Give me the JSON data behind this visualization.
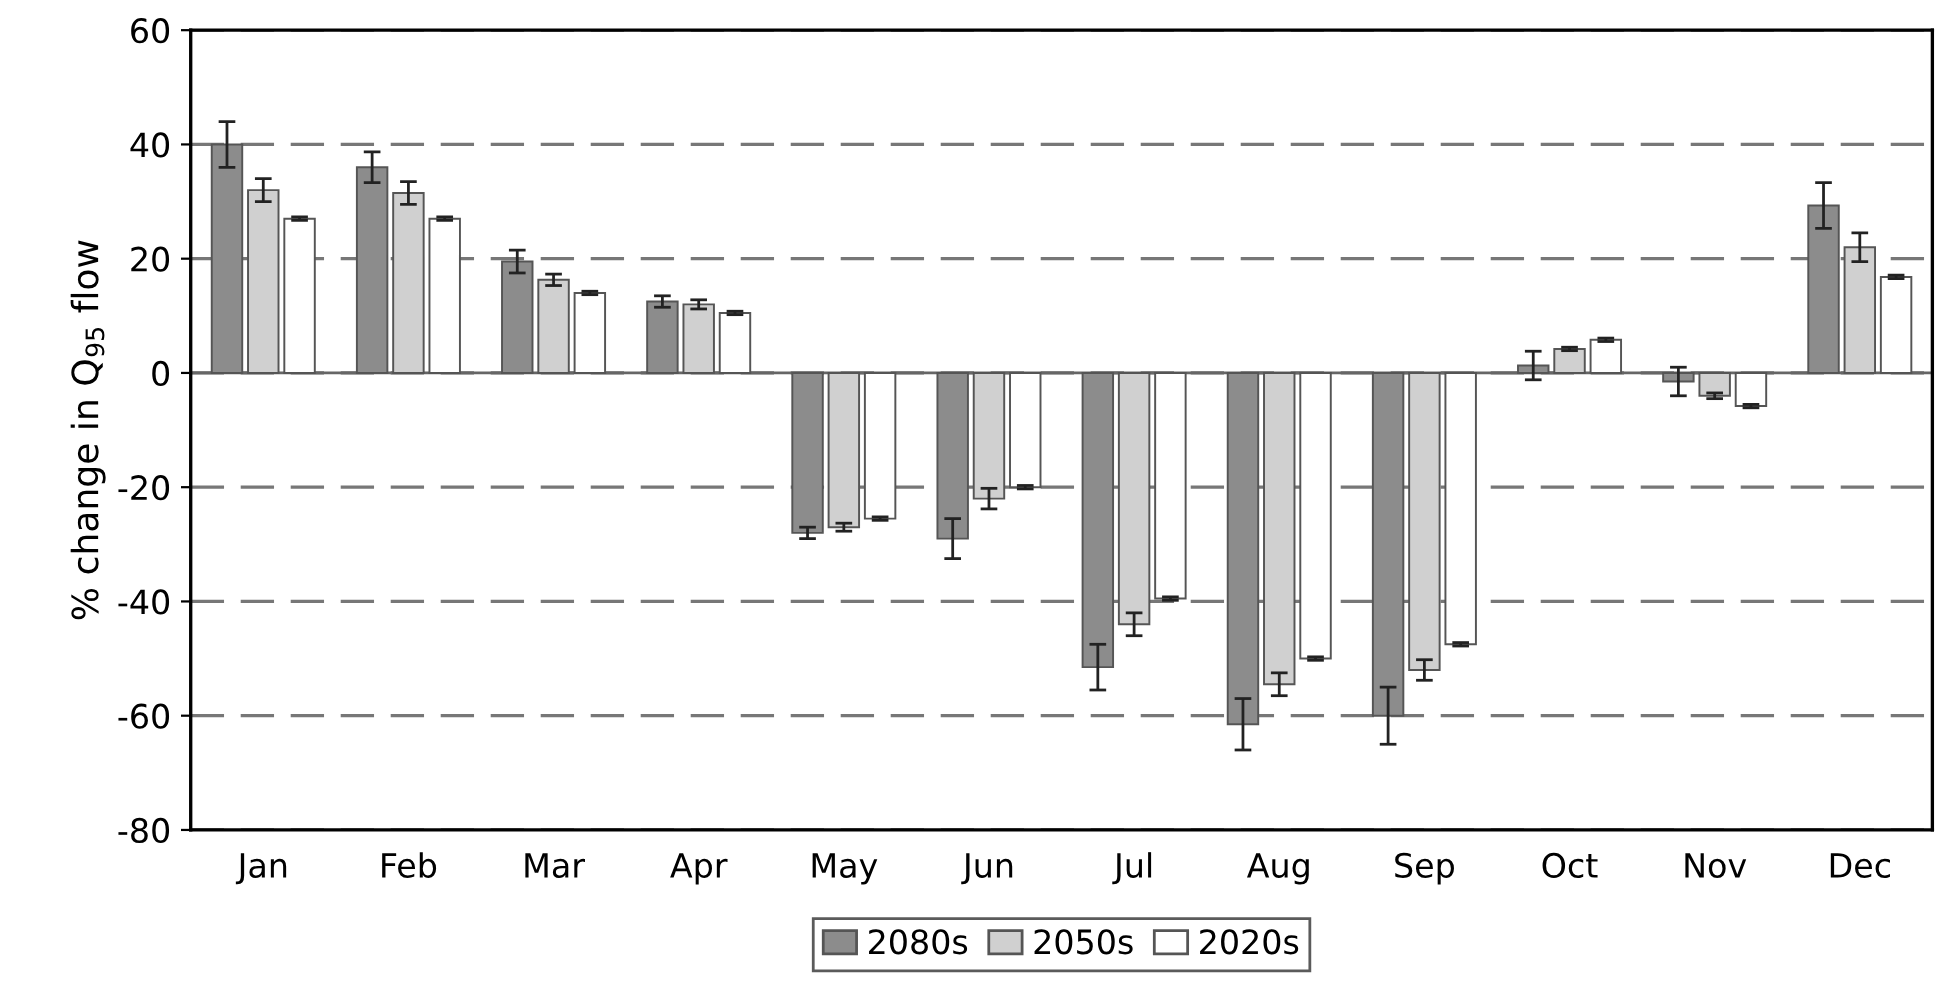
{
  "chart_data": {
    "type": "bar",
    "ylabel": "% change in Q$_{95}$ flow",
    "categories": [
      "Jan",
      "Feb",
      "Mar",
      "Apr",
      "May",
      "Jun",
      "Jul",
      "Aug",
      "Sep",
      "Oct",
      "Nov",
      "Dec"
    ],
    "series": [
      {
        "name": "2080s",
        "color": "#8c8c8c",
        "values": [
          40,
          36,
          19.5,
          12.5,
          -28,
          -29,
          -51.5,
          -61.5,
          -60,
          1.3,
          -1.5,
          29.3
        ],
        "errors": [
          4,
          2.7,
          2,
          1,
          1,
          3.5,
          4,
          4.5,
          5,
          2.5,
          2.5,
          4
        ]
      },
      {
        "name": "2050s",
        "color": "#d0d0d0",
        "values": [
          32,
          31.5,
          16.3,
          12,
          -27,
          -22,
          -44,
          -54.5,
          -52,
          4.2,
          -4,
          22
        ],
        "errors": [
          2,
          2,
          1,
          0.8,
          0.7,
          1.8,
          2,
          2,
          1.8,
          0.3,
          0.5,
          2.5
        ]
      },
      {
        "name": "2020s",
        "color": "#ffffff",
        "values": [
          27,
          27,
          14,
          10.5,
          -25.5,
          -20,
          -39.5,
          -50,
          -47.5,
          5.8,
          -5.8,
          16.8
        ],
        "errors": [
          0.3,
          0.3,
          0.3,
          0.3,
          0.3,
          0.3,
          0.3,
          0.3,
          0.3,
          0.3,
          0.3,
          0.3
        ]
      }
    ],
    "ylim": [
      -80,
      60
    ],
    "yticks": [
      -80,
      -60,
      -40,
      -20,
      0,
      20,
      40,
      60
    ],
    "grid": "y",
    "legend": "bottom"
  }
}
